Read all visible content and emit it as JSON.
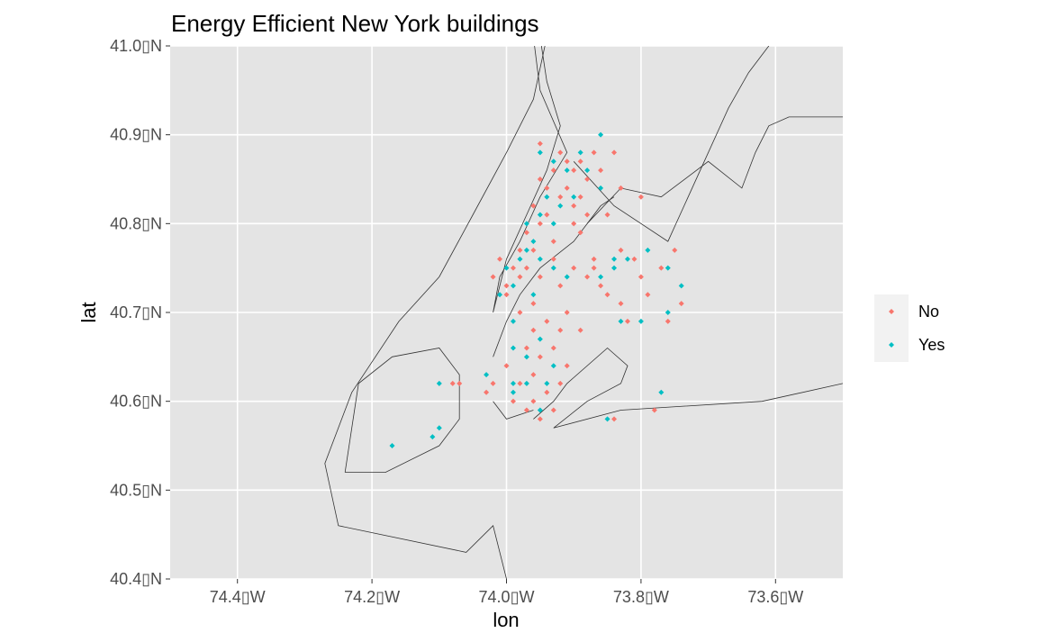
{
  "chart_data": {
    "type": "scatter",
    "title": "Energy Efficient New York buildings",
    "xlabel": "lon",
    "ylabel": "lat",
    "xlim": [
      -74.5,
      -73.5
    ],
    "ylim": [
      40.4,
      41.0
    ],
    "x_ticks": [
      {
        "value": -74.4,
        "label": "74.4▯W"
      },
      {
        "value": -74.2,
        "label": "74.2▯W"
      },
      {
        "value": -74.0,
        "label": "74.0▯W"
      },
      {
        "value": -73.8,
        "label": "73.8▯W"
      },
      {
        "value": -73.6,
        "label": "73.6▯W"
      }
    ],
    "y_ticks": [
      {
        "value": 41.0,
        "label": "41.0▯N"
      },
      {
        "value": 40.9,
        "label": "40.9▯N"
      },
      {
        "value": 40.8,
        "label": "40.8▯N"
      },
      {
        "value": 40.7,
        "label": "40.7▯N"
      },
      {
        "value": 40.6,
        "label": "40.6▯N"
      },
      {
        "value": 40.5,
        "label": "40.5▯N"
      },
      {
        "value": 40.4,
        "label": "40.4▯N"
      }
    ],
    "grid": true,
    "legend_position": "right",
    "colors": {
      "panel_bg": "#e4e4e4",
      "region_fill": "#ebebeb",
      "grid": "#ffffff",
      "outline": "#333333"
    },
    "boundaries": [
      {
        "name": "manhattan",
        "path": [
          [
            -73.96,
            41.01
          ],
          [
            -73.95,
            40.95
          ],
          [
            -73.91,
            40.88
          ],
          [
            -73.95,
            40.83
          ],
          [
            -73.98,
            40.78
          ],
          [
            -74.01,
            40.74
          ],
          [
            -74.02,
            40.7
          ],
          [
            -74.0,
            40.76
          ],
          [
            -73.97,
            40.81
          ],
          [
            -73.94,
            40.86
          ],
          [
            -73.92,
            40.91
          ],
          [
            -73.94,
            40.96
          ],
          [
            -73.95,
            41.01
          ]
        ]
      },
      {
        "name": "west-shore",
        "path": [
          [
            -73.94,
            41.01
          ],
          [
            -73.96,
            40.94
          ],
          [
            -74.0,
            40.88
          ],
          [
            -74.05,
            40.81
          ],
          [
            -74.1,
            40.74
          ],
          [
            -74.16,
            40.69
          ],
          [
            -74.23,
            40.61
          ],
          [
            -74.27,
            40.53
          ],
          [
            -74.25,
            40.46
          ],
          [
            -74.06,
            40.43
          ],
          [
            -74.02,
            40.46
          ],
          [
            -74.0,
            40.4
          ]
        ]
      },
      {
        "name": "bronx-east",
        "path": [
          [
            -73.9,
            40.87
          ],
          [
            -73.84,
            40.82
          ],
          [
            -73.76,
            40.78
          ],
          [
            -73.67,
            40.93
          ],
          [
            -73.64,
            40.97
          ],
          [
            -73.6,
            41.01
          ]
        ]
      },
      {
        "name": "north-shore",
        "path": [
          [
            -73.88,
            40.8
          ],
          [
            -73.83,
            40.84
          ],
          [
            -73.77,
            40.83
          ],
          [
            -73.7,
            40.87
          ],
          [
            -73.65,
            40.84
          ],
          [
            -73.63,
            40.88
          ],
          [
            -73.61,
            40.91
          ],
          [
            -73.58,
            40.92
          ],
          [
            -73.5,
            40.92
          ]
        ]
      },
      {
        "name": "brooklyn-queens",
        "path": [
          [
            -74.02,
            40.65
          ],
          [
            -74.0,
            40.69
          ],
          [
            -73.98,
            40.72
          ],
          [
            -73.95,
            40.75
          ],
          [
            -73.9,
            40.78
          ],
          [
            -73.86,
            40.82
          ],
          [
            -73.84,
            40.83
          ]
        ]
      },
      {
        "name": "south-shore",
        "path": [
          [
            -73.96,
            40.58
          ],
          [
            -73.93,
            40.6
          ],
          [
            -73.91,
            40.62
          ],
          [
            -73.85,
            40.66
          ],
          [
            -73.82,
            40.64
          ],
          [
            -73.83,
            40.62
          ],
          [
            -73.88,
            40.6
          ],
          [
            -73.93,
            40.57
          ],
          [
            -73.83,
            40.59
          ],
          [
            -73.62,
            40.6
          ],
          [
            -73.5,
            40.62
          ]
        ]
      },
      {
        "name": "staten-island",
        "path": [
          [
            -74.24,
            40.52
          ],
          [
            -74.22,
            40.62
          ],
          [
            -74.17,
            40.65
          ],
          [
            -74.1,
            40.66
          ],
          [
            -74.07,
            40.63
          ],
          [
            -74.07,
            40.58
          ],
          [
            -74.1,
            40.55
          ],
          [
            -74.18,
            40.52
          ],
          [
            -74.24,
            40.52
          ]
        ]
      },
      {
        "name": "brooklyn-south",
        "path": [
          [
            -74.02,
            40.6
          ],
          [
            -74.0,
            40.58
          ],
          [
            -73.96,
            40.59
          ]
        ]
      }
    ],
    "series": [
      {
        "name": "No",
        "color": "#f8766d",
        "points": [
          [
            -73.95,
            40.89
          ],
          [
            -73.92,
            40.88
          ],
          [
            -73.93,
            40.86
          ],
          [
            -73.91,
            40.87
          ],
          [
            -73.9,
            40.86
          ],
          [
            -73.89,
            40.87
          ],
          [
            -73.88,
            40.85
          ],
          [
            -73.87,
            40.88
          ],
          [
            -73.86,
            40.86
          ],
          [
            -73.84,
            40.88
          ],
          [
            -73.95,
            40.85
          ],
          [
            -73.94,
            40.84
          ],
          [
            -73.92,
            40.83
          ],
          [
            -73.91,
            40.84
          ],
          [
            -73.9,
            40.82
          ],
          [
            -73.89,
            40.83
          ],
          [
            -73.88,
            40.81
          ],
          [
            -73.85,
            40.81
          ],
          [
            -73.83,
            40.84
          ],
          [
            -73.8,
            40.83
          ],
          [
            -73.96,
            40.82
          ],
          [
            -73.95,
            40.8
          ],
          [
            -73.94,
            40.81
          ],
          [
            -73.97,
            40.79
          ],
          [
            -73.98,
            40.77
          ],
          [
            -73.96,
            40.77
          ],
          [
            -73.99,
            40.75
          ],
          [
            -74.0,
            40.73
          ],
          [
            -73.98,
            40.74
          ],
          [
            -74.01,
            40.76
          ],
          [
            -73.97,
            40.75
          ],
          [
            -73.95,
            40.74
          ],
          [
            -73.93,
            40.76
          ],
          [
            -73.92,
            40.73
          ],
          [
            -73.9,
            40.75
          ],
          [
            -73.88,
            40.74
          ],
          [
            -73.87,
            40.76
          ],
          [
            -73.86,
            40.73
          ],
          [
            -73.85,
            40.72
          ],
          [
            -73.83,
            40.71
          ],
          [
            -73.82,
            40.69
          ],
          [
            -73.8,
            40.74
          ],
          [
            -73.79,
            40.72
          ],
          [
            -73.77,
            40.75
          ],
          [
            -73.75,
            40.77
          ],
          [
            -73.74,
            40.71
          ],
          [
            -73.76,
            40.69
          ],
          [
            -73.98,
            40.7
          ],
          [
            -73.96,
            40.68
          ],
          [
            -73.94,
            40.69
          ],
          [
            -73.92,
            40.68
          ],
          [
            -73.91,
            40.7
          ],
          [
            -73.89,
            40.68
          ],
          [
            -73.97,
            40.66
          ],
          [
            -73.95,
            40.65
          ],
          [
            -73.93,
            40.66
          ],
          [
            -73.91,
            40.64
          ],
          [
            -74.0,
            40.64
          ],
          [
            -73.98,
            40.62
          ],
          [
            -73.96,
            40.63
          ],
          [
            -73.94,
            40.61
          ],
          [
            -73.92,
            40.62
          ],
          [
            -74.02,
            40.62
          ],
          [
            -74.03,
            40.61
          ],
          [
            -73.99,
            40.6
          ],
          [
            -73.97,
            40.59
          ],
          [
            -73.95,
            40.58
          ],
          [
            -73.93,
            40.59
          ],
          [
            -73.96,
            40.6
          ],
          [
            -74.08,
            40.62
          ],
          [
            -74.07,
            40.62
          ],
          [
            -73.78,
            40.59
          ],
          [
            -73.84,
            40.58
          ],
          [
            -73.9,
            40.8
          ],
          [
            -73.89,
            40.79
          ],
          [
            -73.93,
            40.78
          ],
          [
            -73.96,
            40.71
          ],
          [
            -74.0,
            40.72
          ],
          [
            -74.02,
            40.74
          ],
          [
            -73.87,
            40.75
          ],
          [
            -73.83,
            40.77
          ],
          [
            -73.81,
            40.76
          ]
        ]
      },
      {
        "name": "Yes",
        "color": "#00bfc4",
        "points": [
          [
            -73.95,
            40.88
          ],
          [
            -73.93,
            40.87
          ],
          [
            -73.91,
            40.86
          ],
          [
            -73.89,
            40.88
          ],
          [
            -73.86,
            40.9
          ],
          [
            -73.88,
            40.86
          ],
          [
            -73.94,
            40.83
          ],
          [
            -73.92,
            40.82
          ],
          [
            -73.9,
            40.83
          ],
          [
            -73.86,
            40.84
          ],
          [
            -73.93,
            40.8
          ],
          [
            -73.95,
            40.81
          ],
          [
            -73.97,
            40.8
          ],
          [
            -73.96,
            40.78
          ],
          [
            -73.98,
            40.76
          ],
          [
            -74.0,
            40.75
          ],
          [
            -73.99,
            40.73
          ],
          [
            -74.01,
            40.72
          ],
          [
            -73.97,
            40.77
          ],
          [
            -73.95,
            40.76
          ],
          [
            -73.93,
            40.75
          ],
          [
            -73.91,
            40.74
          ],
          [
            -73.86,
            40.74
          ],
          [
            -73.84,
            40.76
          ],
          [
            -73.82,
            40.76
          ],
          [
            -73.79,
            40.77
          ],
          [
            -73.76,
            40.75
          ],
          [
            -73.74,
            40.73
          ],
          [
            -73.76,
            40.7
          ],
          [
            -73.83,
            40.69
          ],
          [
            -73.8,
            40.69
          ],
          [
            -73.99,
            40.69
          ],
          [
            -73.97,
            40.65
          ],
          [
            -73.95,
            40.67
          ],
          [
            -73.93,
            40.64
          ],
          [
            -73.99,
            40.61
          ],
          [
            -73.97,
            40.62
          ],
          [
            -73.95,
            40.59
          ],
          [
            -73.94,
            40.62
          ],
          [
            -74.03,
            40.63
          ],
          [
            -73.99,
            40.62
          ],
          [
            -74.1,
            40.62
          ],
          [
            -74.1,
            40.57
          ],
          [
            -74.11,
            40.56
          ],
          [
            -74.17,
            40.55
          ],
          [
            -73.77,
            40.61
          ],
          [
            -73.85,
            40.58
          ],
          [
            -73.84,
            40.75
          ],
          [
            -73.96,
            40.72
          ],
          [
            -73.99,
            40.66
          ]
        ]
      }
    ]
  }
}
